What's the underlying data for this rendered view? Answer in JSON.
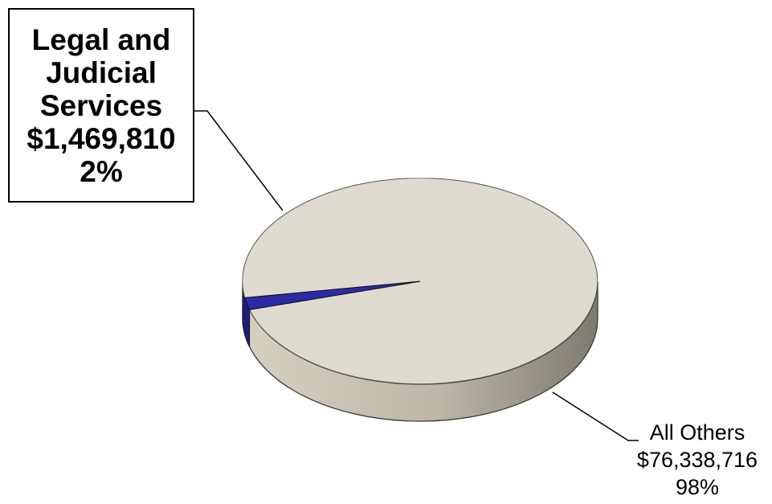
{
  "chart_data": {
    "type": "pie",
    "style": "3d",
    "title": "",
    "slices": [
      {
        "name_lines": [
          "Legal and",
          "Judicial",
          "Services"
        ],
        "amount": "$1,469,810",
        "value": 1469810,
        "percent": "2%",
        "color": "#2b2ba8"
      },
      {
        "name_lines": [
          "All Others"
        ],
        "amount": "$76,338,716",
        "value": 76338716,
        "percent": "98%",
        "color": "#e2ddd2"
      }
    ],
    "legend": "none"
  }
}
